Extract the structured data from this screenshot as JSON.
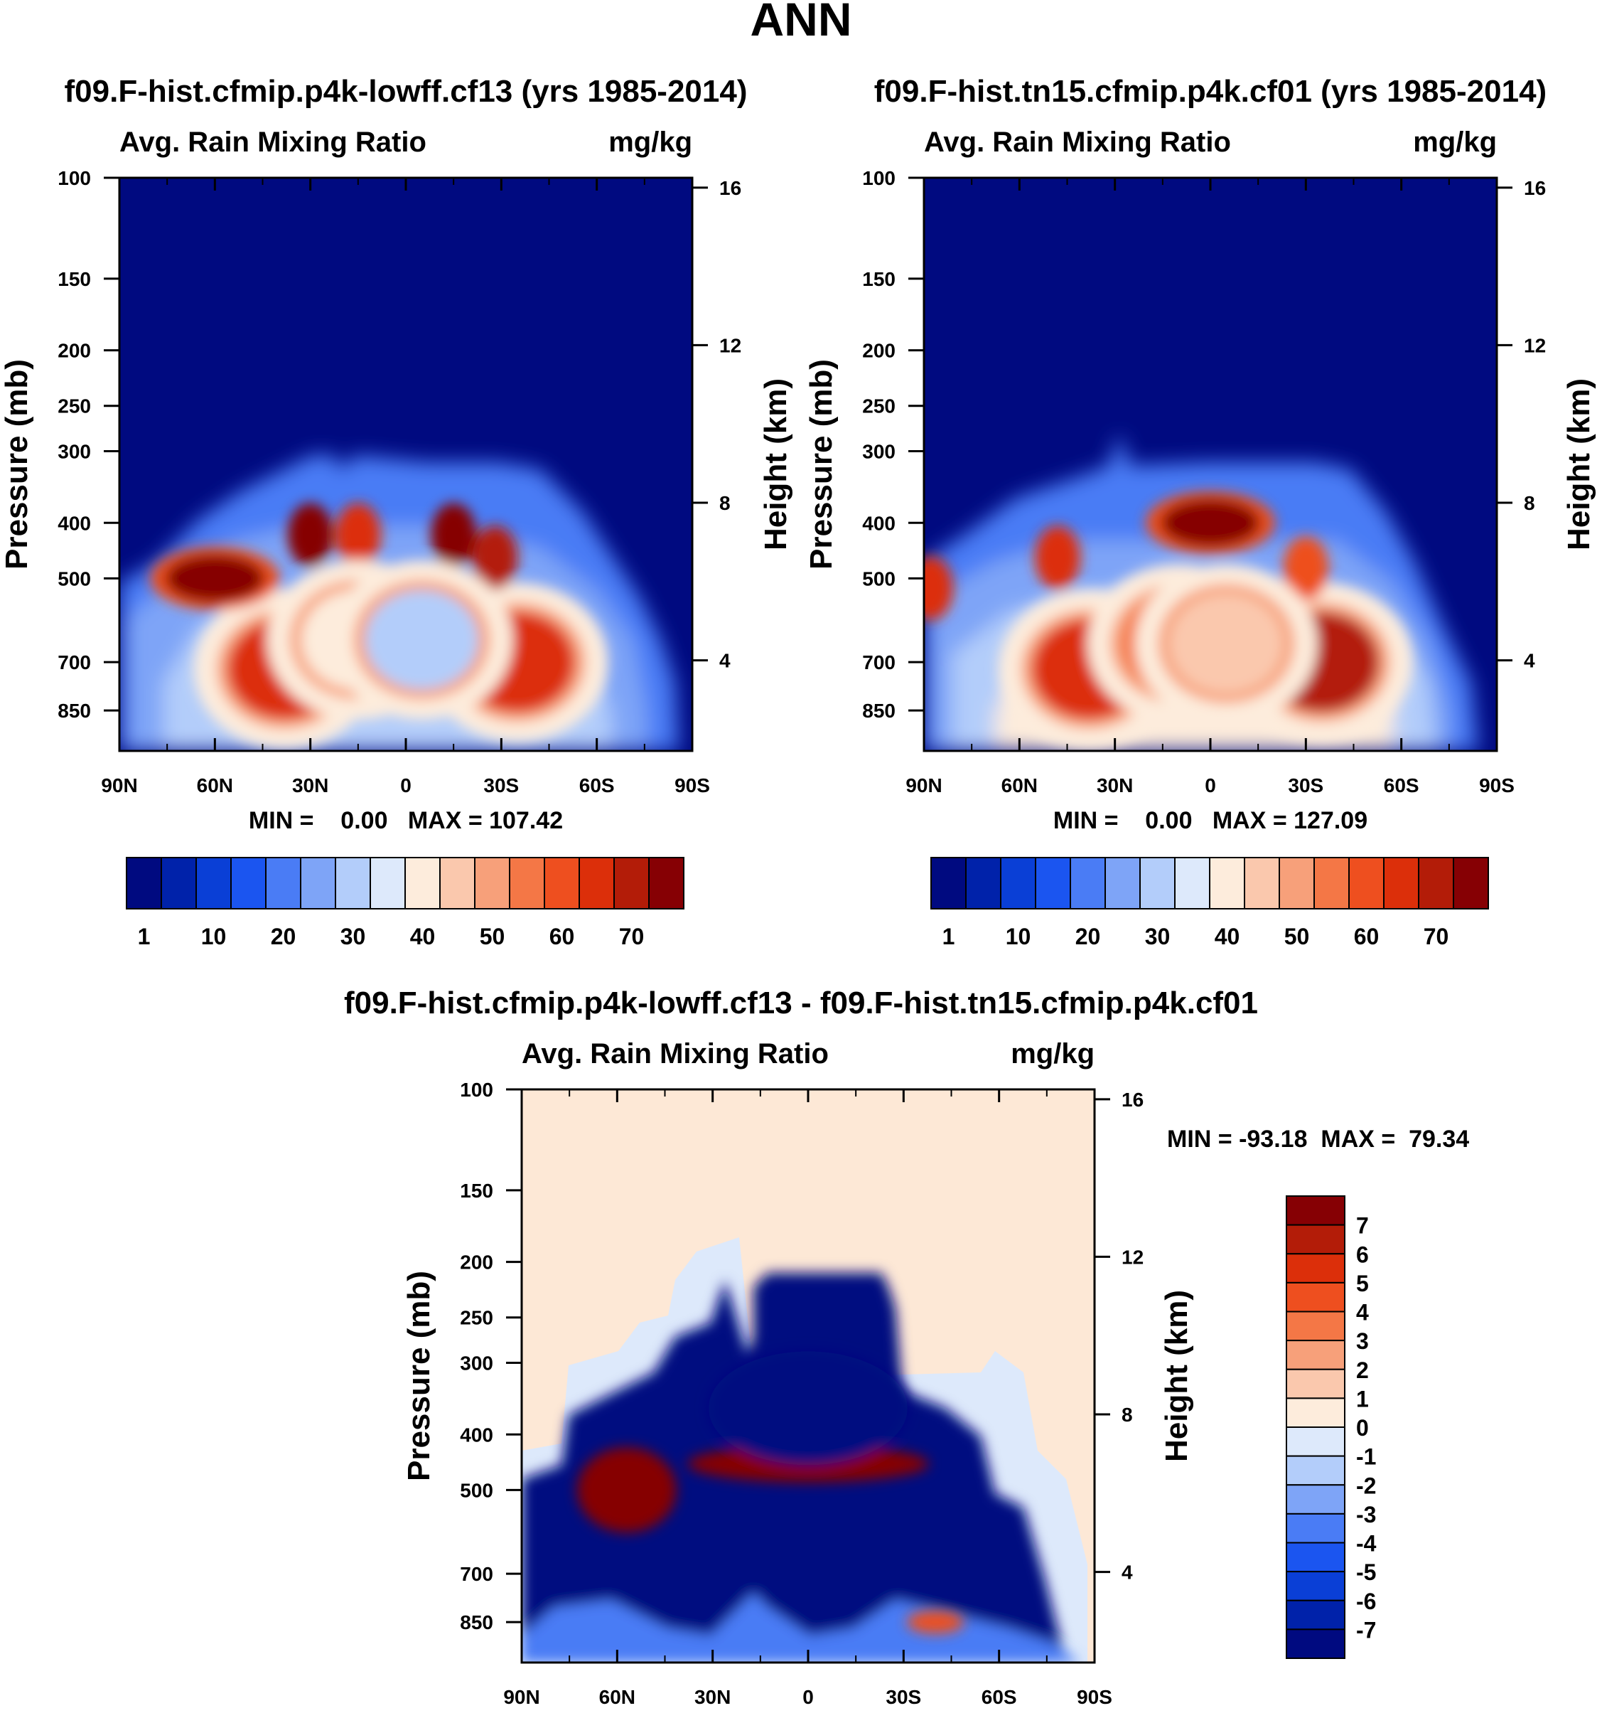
{
  "figure": {
    "title": "ANN",
    "colors": {
      "seq": [
        "#000a80",
        "#0022aa",
        "#0a3fd6",
        "#1b55f0",
        "#4a7cf5",
        "#7ea4f7",
        "#b3cdfa",
        "#dde9fb",
        "#fdecdc",
        "#fac8ad",
        "#f7a07a",
        "#f47746",
        "#ee4f1f",
        "#dc2f0a",
        "#b31c08",
        "#860004"
      ],
      "div": [
        "#000a80",
        "#0022aa",
        "#0a3fd6",
        "#1b55f0",
        "#4a7cf5",
        "#7ea4f7",
        "#b3cdfa",
        "#dde9fb",
        "#fdecdc",
        "#fac8ad",
        "#f7a07a",
        "#f47746",
        "#ee4f1f",
        "#dc2f0a",
        "#b31c08",
        "#860004"
      ],
      "bg_diff": "#fde8d6"
    }
  },
  "chart_data": [
    {
      "type": "heatmap",
      "title": "f09.F-hist.cfmip.p4k-lowff.cf13 (yrs 1985-2014)",
      "subtitle_left": "Avg. Rain Mixing Ratio",
      "subtitle_right": "mg/kg",
      "ylabel": "Pressure (mb)",
      "y2label": "Height (km)",
      "x_ticks": [
        "90N",
        "60N",
        "30N",
        "0",
        "30S",
        "60S",
        "90S"
      ],
      "y_ticks": [
        "100",
        "150",
        "200",
        "250",
        "300",
        "400",
        "500",
        "700",
        "850"
      ],
      "y_tick_values": [
        100,
        150,
        200,
        250,
        300,
        400,
        500,
        700,
        850
      ],
      "y2_ticks": [
        "16",
        "12",
        "8",
        "4"
      ],
      "y2_tick_values": [
        16,
        12,
        8,
        4
      ],
      "stats": "MIN =    0.00   MAX = 107.42",
      "colorbar_labels": [
        "1",
        "10",
        "20",
        "30",
        "40",
        "50",
        "60",
        "70"
      ],
      "features": [
        {
          "lat": 38,
          "p": 720,
          "value": 60
        },
        {
          "lat": -35,
          "p": 700,
          "value": 62
        },
        {
          "lat": 60,
          "p": 500,
          "value": 100
        },
        {
          "lat": 30,
          "p": 420,
          "value": 70
        },
        {
          "lat": 15,
          "p": 420,
          "value": 62
        },
        {
          "lat": -15,
          "p": 420,
          "value": 70
        },
        {
          "lat": -28,
          "p": 460,
          "value": 68
        },
        {
          "lat": 15,
          "p": 640,
          "value": 38
        },
        {
          "lat": -5,
          "p": 640,
          "value": 28
        }
      ]
    },
    {
      "type": "heatmap",
      "title": "f09.F-hist.tn15.cfmip.p4k.cf01 (yrs 1985-2014)",
      "subtitle_left": "Avg. Rain Mixing Ratio",
      "subtitle_right": "mg/kg",
      "ylabel": "Pressure (mb)",
      "y2label": "Height (km)",
      "x_ticks": [
        "90N",
        "60N",
        "30N",
        "0",
        "30S",
        "60S",
        "90S"
      ],
      "y_ticks": [
        "100",
        "150",
        "200",
        "250",
        "300",
        "400",
        "500",
        "700",
        "850"
      ],
      "y_tick_values": [
        100,
        150,
        200,
        250,
        300,
        400,
        500,
        700,
        850
      ],
      "y2_ticks": [
        "16",
        "12",
        "8",
        "4"
      ],
      "y2_tick_values": [
        16,
        12,
        8,
        4
      ],
      "stats": "MIN =    0.00   MAX = 127.09",
      "colorbar_labels": [
        "1",
        "10",
        "20",
        "30",
        "40",
        "50",
        "60",
        "70"
      ],
      "features": [
        {
          "lat": 38,
          "p": 720,
          "value": 62
        },
        {
          "lat": -35,
          "p": 700,
          "value": 65
        },
        {
          "lat": 0,
          "p": 400,
          "value": 120
        },
        {
          "lat": 48,
          "p": 460,
          "value": 62
        },
        {
          "lat": -30,
          "p": 480,
          "value": 55
        },
        {
          "lat": 10,
          "p": 650,
          "value": 50
        },
        {
          "lat": -5,
          "p": 650,
          "value": 42
        },
        {
          "lat": 88,
          "p": 520,
          "value": 60
        }
      ]
    },
    {
      "type": "heatmap",
      "title": "f09.F-hist.cfmip.p4k-lowff.cf13 - f09.F-hist.tn15.cfmip.p4k.cf01",
      "subtitle_left": "Avg. Rain Mixing Ratio",
      "subtitle_right": "mg/kg",
      "ylabel": "Pressure (mb)",
      "y2label": "Height (km)",
      "x_ticks": [
        "90N",
        "60N",
        "30N",
        "0",
        "30S",
        "60S",
        "90S"
      ],
      "y_ticks": [
        "100",
        "150",
        "200",
        "250",
        "300",
        "400",
        "500",
        "700",
        "850"
      ],
      "y_tick_values": [
        100,
        150,
        200,
        250,
        300,
        400,
        500,
        700,
        850
      ],
      "y2_ticks": [
        "16",
        "12",
        "8",
        "4"
      ],
      "y2_tick_values": [
        16,
        12,
        8,
        4
      ],
      "stats": "MIN = -93.18  MAX =  79.34",
      "colorbar_labels": [
        "7",
        "6",
        "5",
        "4",
        "3",
        "2",
        "1",
        "0",
        "-1",
        "-2",
        "-3",
        "-4",
        "-5",
        "-6",
        "-7"
      ],
      "features": [
        {
          "lat": 57,
          "p": 500,
          "value": 7
        },
        {
          "lat": 0,
          "p": 450,
          "value": 7
        },
        {
          "lat": 0,
          "p": 360,
          "value": -7
        },
        {
          "lat": -40,
          "p": 850,
          "value": 4
        }
      ]
    }
  ]
}
